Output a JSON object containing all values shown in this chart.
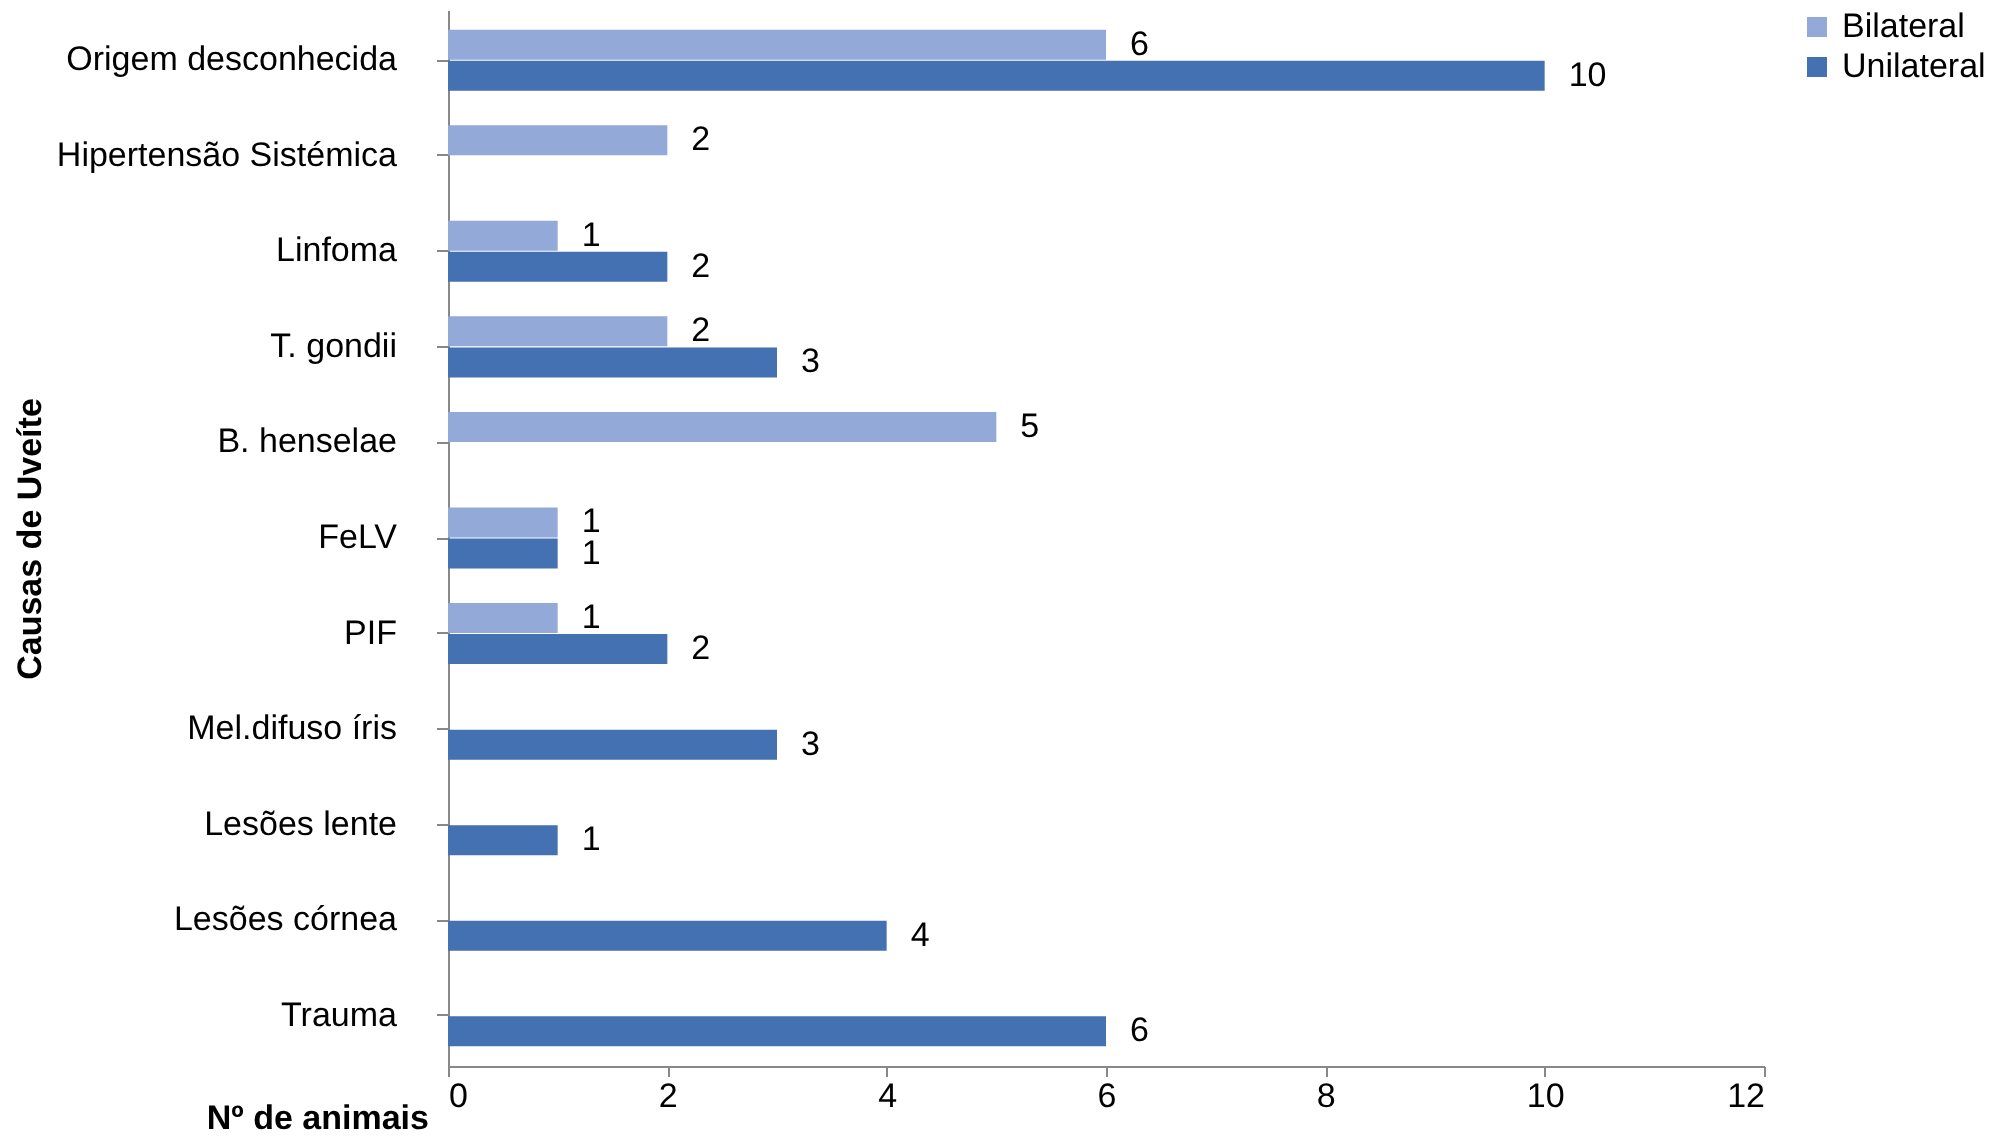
{
  "chart_data": {
    "type": "bar",
    "orientation": "horizontal",
    "xlabel": "Nº de animais",
    "ylabel": "Causas de Uveíte",
    "categories": [
      "Origem desconhecida",
      "Hipertensão Sistémica",
      "Linfoma",
      "T. gondii",
      "B. henselae",
      "FeLV",
      "PIF",
      "Mel.difuso íris",
      "Lesões lente",
      "Lesões córnea",
      "Trauma"
    ],
    "series": [
      {
        "name": "Bilateral",
        "color": "#93a9d8",
        "values": [
          6,
          2,
          1,
          2,
          5,
          1,
          1,
          null,
          null,
          null,
          null
        ]
      },
      {
        "name": "Unilateral",
        "color": "#4371b1",
        "values": [
          10,
          null,
          2,
          3,
          null,
          1,
          2,
          3,
          1,
          4,
          6
        ]
      }
    ],
    "xlim": [
      0,
      12
    ],
    "xticks": [
      0,
      2,
      4,
      6,
      8,
      10,
      12
    ],
    "grid": false,
    "legend": "right",
    "data_labels": true
  }
}
